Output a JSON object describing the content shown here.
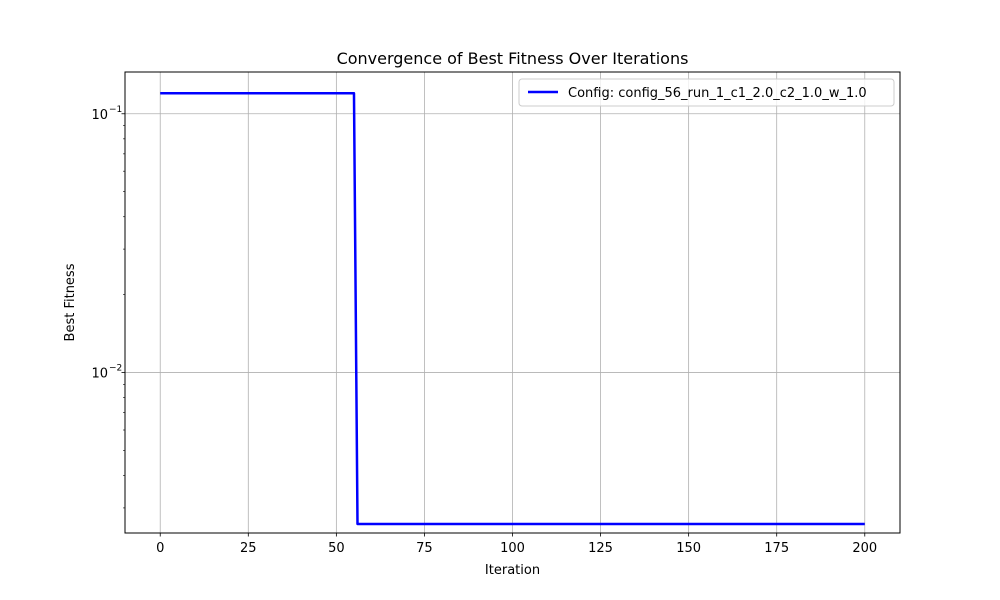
{
  "chart_data": {
    "type": "line",
    "title": "Convergence of Best Fitness Over Iterations",
    "xlabel": "Iteration",
    "ylabel": "Best Fitness",
    "xlim": [
      -10,
      210
    ],
    "ylim": [
      0.0024,
      0.145
    ],
    "yscale": "log",
    "grid": true,
    "legend_position": "upper-right",
    "x_ticks": [
      {
        "value": 0,
        "label": "0"
      },
      {
        "value": 25,
        "label": "25"
      },
      {
        "value": 50,
        "label": "50"
      },
      {
        "value": 75,
        "label": "75"
      },
      {
        "value": 100,
        "label": "100"
      },
      {
        "value": 125,
        "label": "125"
      },
      {
        "value": 150,
        "label": "150"
      },
      {
        "value": 175,
        "label": "175"
      },
      {
        "value": 200,
        "label": "200"
      }
    ],
    "y_major_ticks": [
      {
        "value": 0.01,
        "base": "10",
        "exponent": "−2"
      },
      {
        "value": 0.1,
        "base": "10",
        "exponent": "−1"
      }
    ],
    "y_minor_ticks": [
      0.003,
      0.004,
      0.005,
      0.006,
      0.007,
      0.008,
      0.009,
      0.02,
      0.03,
      0.04,
      0.05,
      0.06,
      0.07,
      0.08,
      0.09
    ],
    "series": [
      {
        "name": "Config: config_56_run_1_c1_2.0_c2_1.0_w_1.0",
        "color": "#0000ff",
        "x": [
          0,
          55,
          56,
          200
        ],
        "y": [
          0.12,
          0.12,
          0.0026,
          0.0026
        ]
      }
    ]
  }
}
